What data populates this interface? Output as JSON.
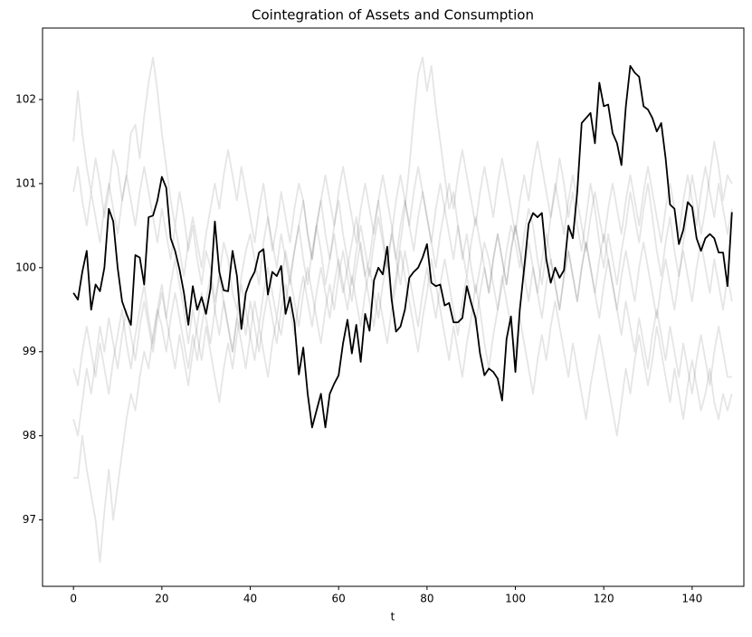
{
  "chart_data": {
    "type": "line",
    "title": "Cointegration of Assets and Consumption",
    "xlabel": "t",
    "x": [
      0,
      1,
      2,
      3,
      4,
      5,
      6,
      7,
      8,
      9,
      10,
      11,
      12,
      13,
      14,
      15,
      16,
      17,
      18,
      19,
      20,
      21,
      22,
      23,
      24,
      25,
      26,
      27,
      28,
      29,
      30,
      31,
      32,
      33,
      34,
      35,
      36,
      37,
      38,
      39,
      40,
      41,
      42,
      43,
      44,
      45,
      46,
      47,
      48,
      49,
      50,
      51,
      52,
      53,
      54,
      55,
      56,
      57,
      58,
      59,
      60,
      61,
      62,
      63,
      64,
      65,
      66,
      67,
      68,
      69,
      70,
      71,
      72,
      73,
      74,
      75,
      76,
      77,
      78,
      79,
      80,
      81,
      82,
      83,
      84,
      85,
      86,
      87,
      88,
      89,
      90,
      91,
      92,
      93,
      94,
      95,
      96,
      97,
      98,
      99,
      100,
      101,
      102,
      103,
      104,
      105,
      106,
      107,
      108,
      109,
      110,
      111,
      112,
      113,
      114,
      115,
      116,
      117,
      118,
      119,
      120,
      121,
      122,
      123,
      124,
      125,
      126,
      127,
      128,
      129,
      130,
      131,
      132,
      133,
      134,
      135,
      136,
      137,
      138,
      139,
      140,
      141,
      142,
      143,
      144,
      145,
      146,
      147,
      148,
      149
    ],
    "xlim": [
      -7,
      151.7
    ],
    "ylim": [
      96.21,
      102.85
    ],
    "xticks": [
      0,
      20,
      40,
      60,
      80,
      100,
      120,
      140
    ],
    "yticks": [
      97,
      98,
      99,
      100,
      101,
      102
    ],
    "series": [
      {
        "color": "#000000",
        "alpha": 0.1,
        "values": [
          101.5,
          102.1,
          101.6,
          101.2,
          100.9,
          101.3,
          101.0,
          100.6,
          100.9,
          101.4,
          101.2,
          100.8,
          101.1,
          101.6,
          101.7,
          101.3,
          101.8,
          102.2,
          102.5,
          102.1,
          101.6,
          101.2,
          100.8,
          100.5,
          100.9,
          100.6,
          100.2,
          100.5,
          100.1,
          99.8,
          100.2,
          100.0,
          99.6,
          99.9,
          100.3,
          100.1,
          99.7,
          99.5,
          99.9,
          100.2,
          100.4,
          100.1,
          99.8,
          100.3,
          100.6,
          100.2,
          100.5,
          100.9,
          100.6,
          100.3,
          100.7,
          101.0,
          100.8,
          100.4,
          100.1,
          100.5,
          100.2,
          99.8,
          100.1,
          100.4,
          100.0,
          99.7,
          100.0,
          100.3,
          100.6,
          100.2,
          99.9,
          100.1,
          100.5,
          100.8,
          100.4,
          100.0,
          99.6,
          99.9,
          100.3,
          100.7,
          101.2,
          101.8,
          102.3,
          102.5,
          102.1,
          102.4,
          101.9,
          101.5,
          101.1,
          100.7,
          100.9,
          100.5,
          100.1,
          100.4,
          100.0,
          99.7,
          100.0,
          100.3,
          100.1,
          99.8,
          99.5,
          99.8,
          100.2,
          100.5,
          100.3,
          100.0,
          100.4,
          100.7,
          100.5,
          100.1,
          99.8,
          100.2,
          100.6,
          100.9,
          101.3,
          101.0,
          100.6,
          100.9,
          100.5,
          100.2,
          100.6,
          101.0,
          100.7,
          100.3,
          100.0,
          100.4,
          100.1,
          99.8,
          100.2,
          100.5,
          100.9,
          100.6,
          100.3,
          100.7,
          101.0,
          100.6,
          100.2,
          99.9,
          100.3,
          100.6,
          100.2,
          99.9,
          100.3,
          100.7,
          101.1,
          100.8,
          100.4,
          100.7,
          101.1,
          101.5,
          101.2,
          100.8,
          101.1,
          101.0
        ]
      },
      {
        "color": "#000000",
        "alpha": 0.1,
        "values": [
          97.5,
          97.5,
          98.0,
          97.6,
          97.3,
          97.0,
          96.5,
          97.1,
          97.6,
          97.0,
          97.4,
          97.8,
          98.2,
          98.5,
          98.3,
          98.7,
          99.0,
          98.8,
          99.2,
          99.5,
          99.3,
          99.0,
          99.4,
          99.7,
          99.4,
          99.1,
          98.8,
          99.2,
          98.9,
          99.3,
          99.6,
          99.9,
          99.5,
          99.2,
          99.6,
          99.3,
          99.0,
          99.4,
          99.8,
          99.5,
          99.2,
          98.9,
          99.3,
          99.0,
          98.7,
          99.1,
          99.4,
          99.2,
          99.6,
          99.9,
          99.6,
          99.3,
          99.7,
          100.0,
          99.7,
          99.4,
          99.1,
          99.5,
          99.8,
          99.5,
          99.9,
          100.2,
          99.9,
          99.6,
          100.0,
          100.3,
          99.9,
          99.6,
          99.3,
          99.7,
          99.4,
          99.1,
          99.5,
          99.8,
          100.2,
          99.9,
          99.6,
          99.3,
          99.0,
          99.4,
          99.7,
          100.1,
          99.8,
          99.5,
          99.2,
          98.9,
          99.3,
          99.0,
          98.7,
          99.1,
          99.4,
          99.8,
          99.5,
          99.1,
          98.8,
          99.2,
          99.5,
          99.9,
          99.6,
          99.3,
          99.0,
          99.4,
          99.1,
          98.8,
          98.5,
          98.9,
          99.2,
          98.9,
          99.3,
          99.6,
          99.3,
          99.0,
          98.7,
          99.1,
          98.8,
          98.5,
          98.2,
          98.6,
          98.9,
          99.2,
          98.9,
          98.6,
          98.3,
          98.0,
          98.4,
          98.8,
          98.5,
          98.9,
          99.2,
          98.9,
          98.6,
          98.9,
          99.3,
          99.0,
          98.7,
          98.4,
          98.8,
          98.5,
          98.2,
          98.6,
          98.9,
          98.6,
          98.3,
          98.5,
          98.8,
          98.4,
          98.2,
          98.5,
          98.3,
          98.5
        ]
      },
      {
        "color": "#000000",
        "alpha": 0.1,
        "values": [
          98.8,
          98.6,
          99.0,
          99.3,
          99.0,
          98.7,
          99.1,
          98.8,
          98.5,
          98.9,
          99.2,
          99.5,
          99.1,
          98.8,
          99.2,
          99.5,
          99.8,
          99.4,
          99.1,
          99.5,
          99.8,
          99.4,
          99.1,
          98.8,
          99.2,
          98.9,
          98.6,
          99.0,
          99.3,
          99.7,
          99.4,
          99.1,
          99.5,
          99.9,
          99.6,
          99.3,
          99.0,
          99.4,
          99.1,
          98.8,
          99.2,
          99.6,
          99.3,
          99.7,
          100.0,
          99.7,
          99.4,
          99.8,
          100.2,
          99.9,
          100.2,
          100.5,
          100.1,
          99.8,
          100.2,
          100.5,
          100.8,
          100.4,
          100.1,
          100.5,
          100.8,
          100.4,
          100.1,
          99.8,
          100.2,
          100.5,
          100.2,
          99.9,
          100.3,
          100.6,
          100.3,
          100.0,
          100.4,
          100.8,
          101.1,
          100.8,
          100.5,
          100.9,
          101.2,
          100.9,
          100.6,
          100.3,
          100.7,
          101.0,
          100.7,
          100.4,
          100.1,
          100.5,
          100.2,
          99.9,
          100.3,
          100.6,
          100.3,
          100.0,
          99.7,
          100.1,
          100.4,
          100.1,
          99.8,
          100.2,
          100.5,
          100.2,
          99.9,
          99.6,
          100.0,
          99.7,
          99.4,
          99.8,
          100.1,
          99.8,
          99.5,
          99.9,
          100.2,
          99.9,
          99.6,
          100.0,
          100.3,
          100.0,
          99.7,
          99.4,
          99.8,
          100.1,
          99.8,
          99.5,
          99.2,
          99.6,
          99.3,
          99.0,
          99.4,
          99.1,
          98.8,
          99.2,
          99.5,
          99.2,
          98.9,
          99.3,
          99.0,
          98.7,
          99.1,
          98.8,
          98.5,
          98.9,
          99.2,
          98.9,
          98.6,
          99.0,
          99.3,
          99.0,
          98.7,
          98.7
        ]
      },
      {
        "color": "#000000",
        "alpha": 0.1,
        "values": [
          100.9,
          101.2,
          100.8,
          100.5,
          100.9,
          100.6,
          100.3,
          100.7,
          101.0,
          100.7,
          100.4,
          100.8,
          101.1,
          100.8,
          100.5,
          100.9,
          101.2,
          100.9,
          100.6,
          100.3,
          100.7,
          100.4,
          100.1,
          100.5,
          100.2,
          99.9,
          100.3,
          100.6,
          100.3,
          100.0,
          100.4,
          100.7,
          101.0,
          100.7,
          101.1,
          101.4,
          101.1,
          100.8,
          101.2,
          100.9,
          100.6,
          100.3,
          100.7,
          101.0,
          100.6,
          100.3,
          100.0,
          100.4,
          100.1,
          99.8,
          100.2,
          100.5,
          100.8,
          100.4,
          100.1,
          100.5,
          100.8,
          101.1,
          100.8,
          100.5,
          100.9,
          101.2,
          100.9,
          100.6,
          100.3,
          100.7,
          101.0,
          100.7,
          100.4,
          100.8,
          101.1,
          100.8,
          100.5,
          100.1,
          100.5,
          100.8,
          100.5,
          100.2,
          100.6,
          100.9,
          100.6,
          100.3,
          100.0,
          100.4,
          100.7,
          101.0,
          100.7,
          101.1,
          101.4,
          101.1,
          100.8,
          100.5,
          100.9,
          101.2,
          100.9,
          100.6,
          101.0,
          101.3,
          101.0,
          100.7,
          100.4,
          100.8,
          101.1,
          100.8,
          101.2,
          101.5,
          101.2,
          100.9,
          100.6,
          101.0,
          100.7,
          100.4,
          100.8,
          101.1,
          100.8,
          100.5,
          100.2,
          100.6,
          100.9,
          100.6,
          100.3,
          100.7,
          101.0,
          100.7,
          100.4,
          100.8,
          101.1,
          100.8,
          100.5,
          100.9,
          101.2,
          100.9,
          100.6,
          100.3,
          100.7,
          101.0,
          100.7,
          100.4,
          100.8,
          101.1,
          100.8,
          100.5,
          100.9,
          101.2,
          100.9,
          100.6,
          101.0,
          100.7,
          100.4,
          100.7
        ]
      },
      {
        "color": "#000000",
        "alpha": 0.1,
        "values": [
          98.2,
          98.0,
          98.4,
          98.8,
          98.5,
          98.9,
          99.3,
          99.0,
          99.4,
          99.1,
          98.8,
          99.2,
          99.5,
          99.2,
          98.9,
          99.3,
          99.6,
          99.3,
          99.0,
          99.4,
          99.7,
          99.4,
          99.8,
          100.1,
          99.8,
          99.5,
          99.1,
          99.5,
          99.2,
          98.9,
          99.3,
          99.0,
          98.7,
          98.4,
          98.8,
          99.1,
          98.8,
          99.2,
          99.5,
          99.2,
          99.6,
          99.3,
          99.0,
          99.4,
          99.7,
          99.4,
          99.1,
          99.5,
          99.8,
          99.5,
          99.2,
          99.6,
          99.9,
          99.6,
          99.3,
          99.7,
          100.0,
          99.7,
          99.4,
          99.8,
          100.1,
          99.8,
          99.5,
          99.9,
          99.6,
          99.3,
          99.7,
          100.0,
          99.7,
          99.4,
          99.8,
          100.1,
          100.4,
          100.1,
          99.8,
          100.2,
          99.9,
          99.6,
          99.3,
          99.7,
          100.0,
          99.7,
          99.4,
          99.8,
          100.1,
          99.8,
          99.5,
          99.2,
          99.6,
          99.9,
          99.6,
          99.3,
          99.7,
          100.0,
          99.7,
          100.1,
          100.4,
          100.1,
          99.8,
          100.2,
          100.5,
          100.2,
          99.9,
          100.3,
          100.0,
          99.7,
          100.1,
          100.4,
          100.1,
          99.8,
          99.5,
          99.9,
          100.2,
          99.9,
          99.6,
          100.0,
          100.3,
          100.0,
          99.7,
          100.1,
          100.4,
          100.1,
          99.8,
          99.5,
          99.9,
          100.2,
          99.9,
          99.6,
          100.0,
          100.3,
          100.0,
          99.7,
          99.4,
          99.8,
          100.1,
          99.8,
          99.5,
          99.9,
          100.2,
          99.9,
          99.6,
          100.0,
          100.3,
          100.0,
          99.7,
          100.1,
          99.8,
          99.5,
          99.9,
          99.6
        ]
      },
      {
        "color": "#000000",
        "alpha": 1,
        "values": [
          99.7,
          99.62,
          99.95,
          100.2,
          99.5,
          99.8,
          99.72,
          100.0,
          100.7,
          100.55,
          100.0,
          99.6,
          99.45,
          99.32,
          100.15,
          100.12,
          99.8,
          100.6,
          100.62,
          100.8,
          101.08,
          100.95,
          100.35,
          100.2,
          99.98,
          99.7,
          99.32,
          99.78,
          99.5,
          99.65,
          99.45,
          99.75,
          100.55,
          99.95,
          99.73,
          99.72,
          100.2,
          99.9,
          99.27,
          99.7,
          99.85,
          99.95,
          100.18,
          100.22,
          99.68,
          99.95,
          99.9,
          100.02,
          99.45,
          99.65,
          99.35,
          98.73,
          99.05,
          98.5,
          98.1,
          98.3,
          98.5,
          98.1,
          98.5,
          98.62,
          98.72,
          99.1,
          99.38,
          98.98,
          99.32,
          98.88,
          99.45,
          99.25,
          99.85,
          100.0,
          99.92,
          100.25,
          99.62,
          99.24,
          99.3,
          99.5,
          99.88,
          99.95,
          100.0,
          100.12,
          100.28,
          99.82,
          99.78,
          99.8,
          99.55,
          99.58,
          99.35,
          99.35,
          99.4,
          99.78,
          99.58,
          99.4,
          98.98,
          98.72,
          98.8,
          98.76,
          98.68,
          98.42,
          99.15,
          99.42,
          98.76,
          99.5,
          100.0,
          100.52,
          100.65,
          100.6,
          100.65,
          100.1,
          99.82,
          100.0,
          99.88,
          99.97,
          100.5,
          100.35,
          100.9,
          101.72,
          101.78,
          101.84,
          101.48,
          102.2,
          101.92,
          101.94,
          101.6,
          101.48,
          101.22,
          101.92,
          102.4,
          102.32,
          102.27,
          101.92,
          101.88,
          101.78,
          101.62,
          101.72,
          101.3,
          100.75,
          100.7,
          100.28,
          100.45,
          100.78,
          100.72,
          100.35,
          100.2,
          100.35,
          100.4,
          100.35,
          100.18,
          100.18,
          99.78,
          100.66
        ]
      }
    ]
  }
}
